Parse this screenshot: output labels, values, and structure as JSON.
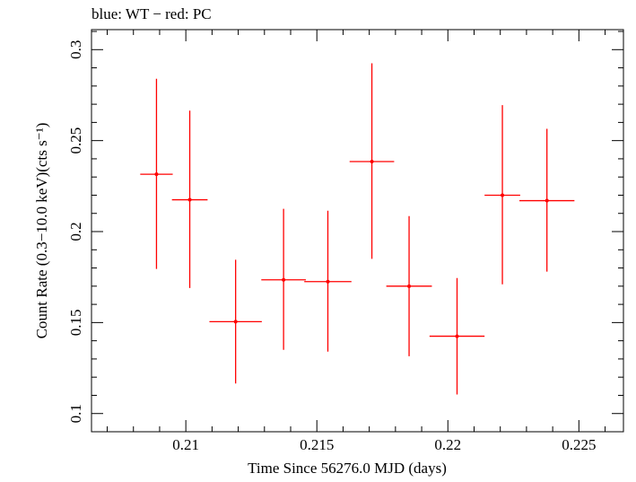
{
  "chart_data": {
    "type": "scatter",
    "title": "blue: WT − red: PC",
    "xlabel": "Time Since 56276.0 MJD (days)",
    "ylabel": "Count Rate (0.3−10.0 keV)(cts s⁻¹)",
    "xlim": [
      0.2064,
      0.2267
    ],
    "ylim": [
      0.09,
      0.311
    ],
    "xticks": [
      0.21,
      0.215,
      0.22,
      0.225
    ],
    "xtick_labels": [
      "0.21",
      "0.215",
      "0.22",
      "0.225"
    ],
    "yticks": [
      0.1,
      0.15,
      0.2,
      0.25,
      0.3
    ],
    "ytick_labels": [
      "0.1",
      "0.15",
      "0.2",
      "0.25",
      "0.3"
    ],
    "grid": false,
    "legend": "none",
    "series": [
      {
        "color": "#ff0000",
        "x": [
          0.20888,
          0.21015,
          0.2119,
          0.21373,
          0.21542,
          0.2171,
          0.21852,
          0.22035,
          0.22208,
          0.22378
        ],
        "xerr": [
          0.00062,
          0.00068,
          0.001,
          0.00085,
          0.0009,
          0.00085,
          0.00087,
          0.00105,
          0.00068,
          0.00105
        ],
        "y": [
          0.2315,
          0.2175,
          0.1505,
          0.1735,
          0.1725,
          0.2385,
          0.17,
          0.1425,
          0.22,
          0.217
        ],
        "yerr_low": [
          0.052,
          0.0485,
          0.034,
          0.0385,
          0.0385,
          0.0535,
          0.0385,
          0.032,
          0.049,
          0.039
        ],
        "yerr_high": [
          0.0525,
          0.049,
          0.034,
          0.039,
          0.039,
          0.054,
          0.0385,
          0.032,
          0.0495,
          0.0395
        ]
      }
    ]
  }
}
